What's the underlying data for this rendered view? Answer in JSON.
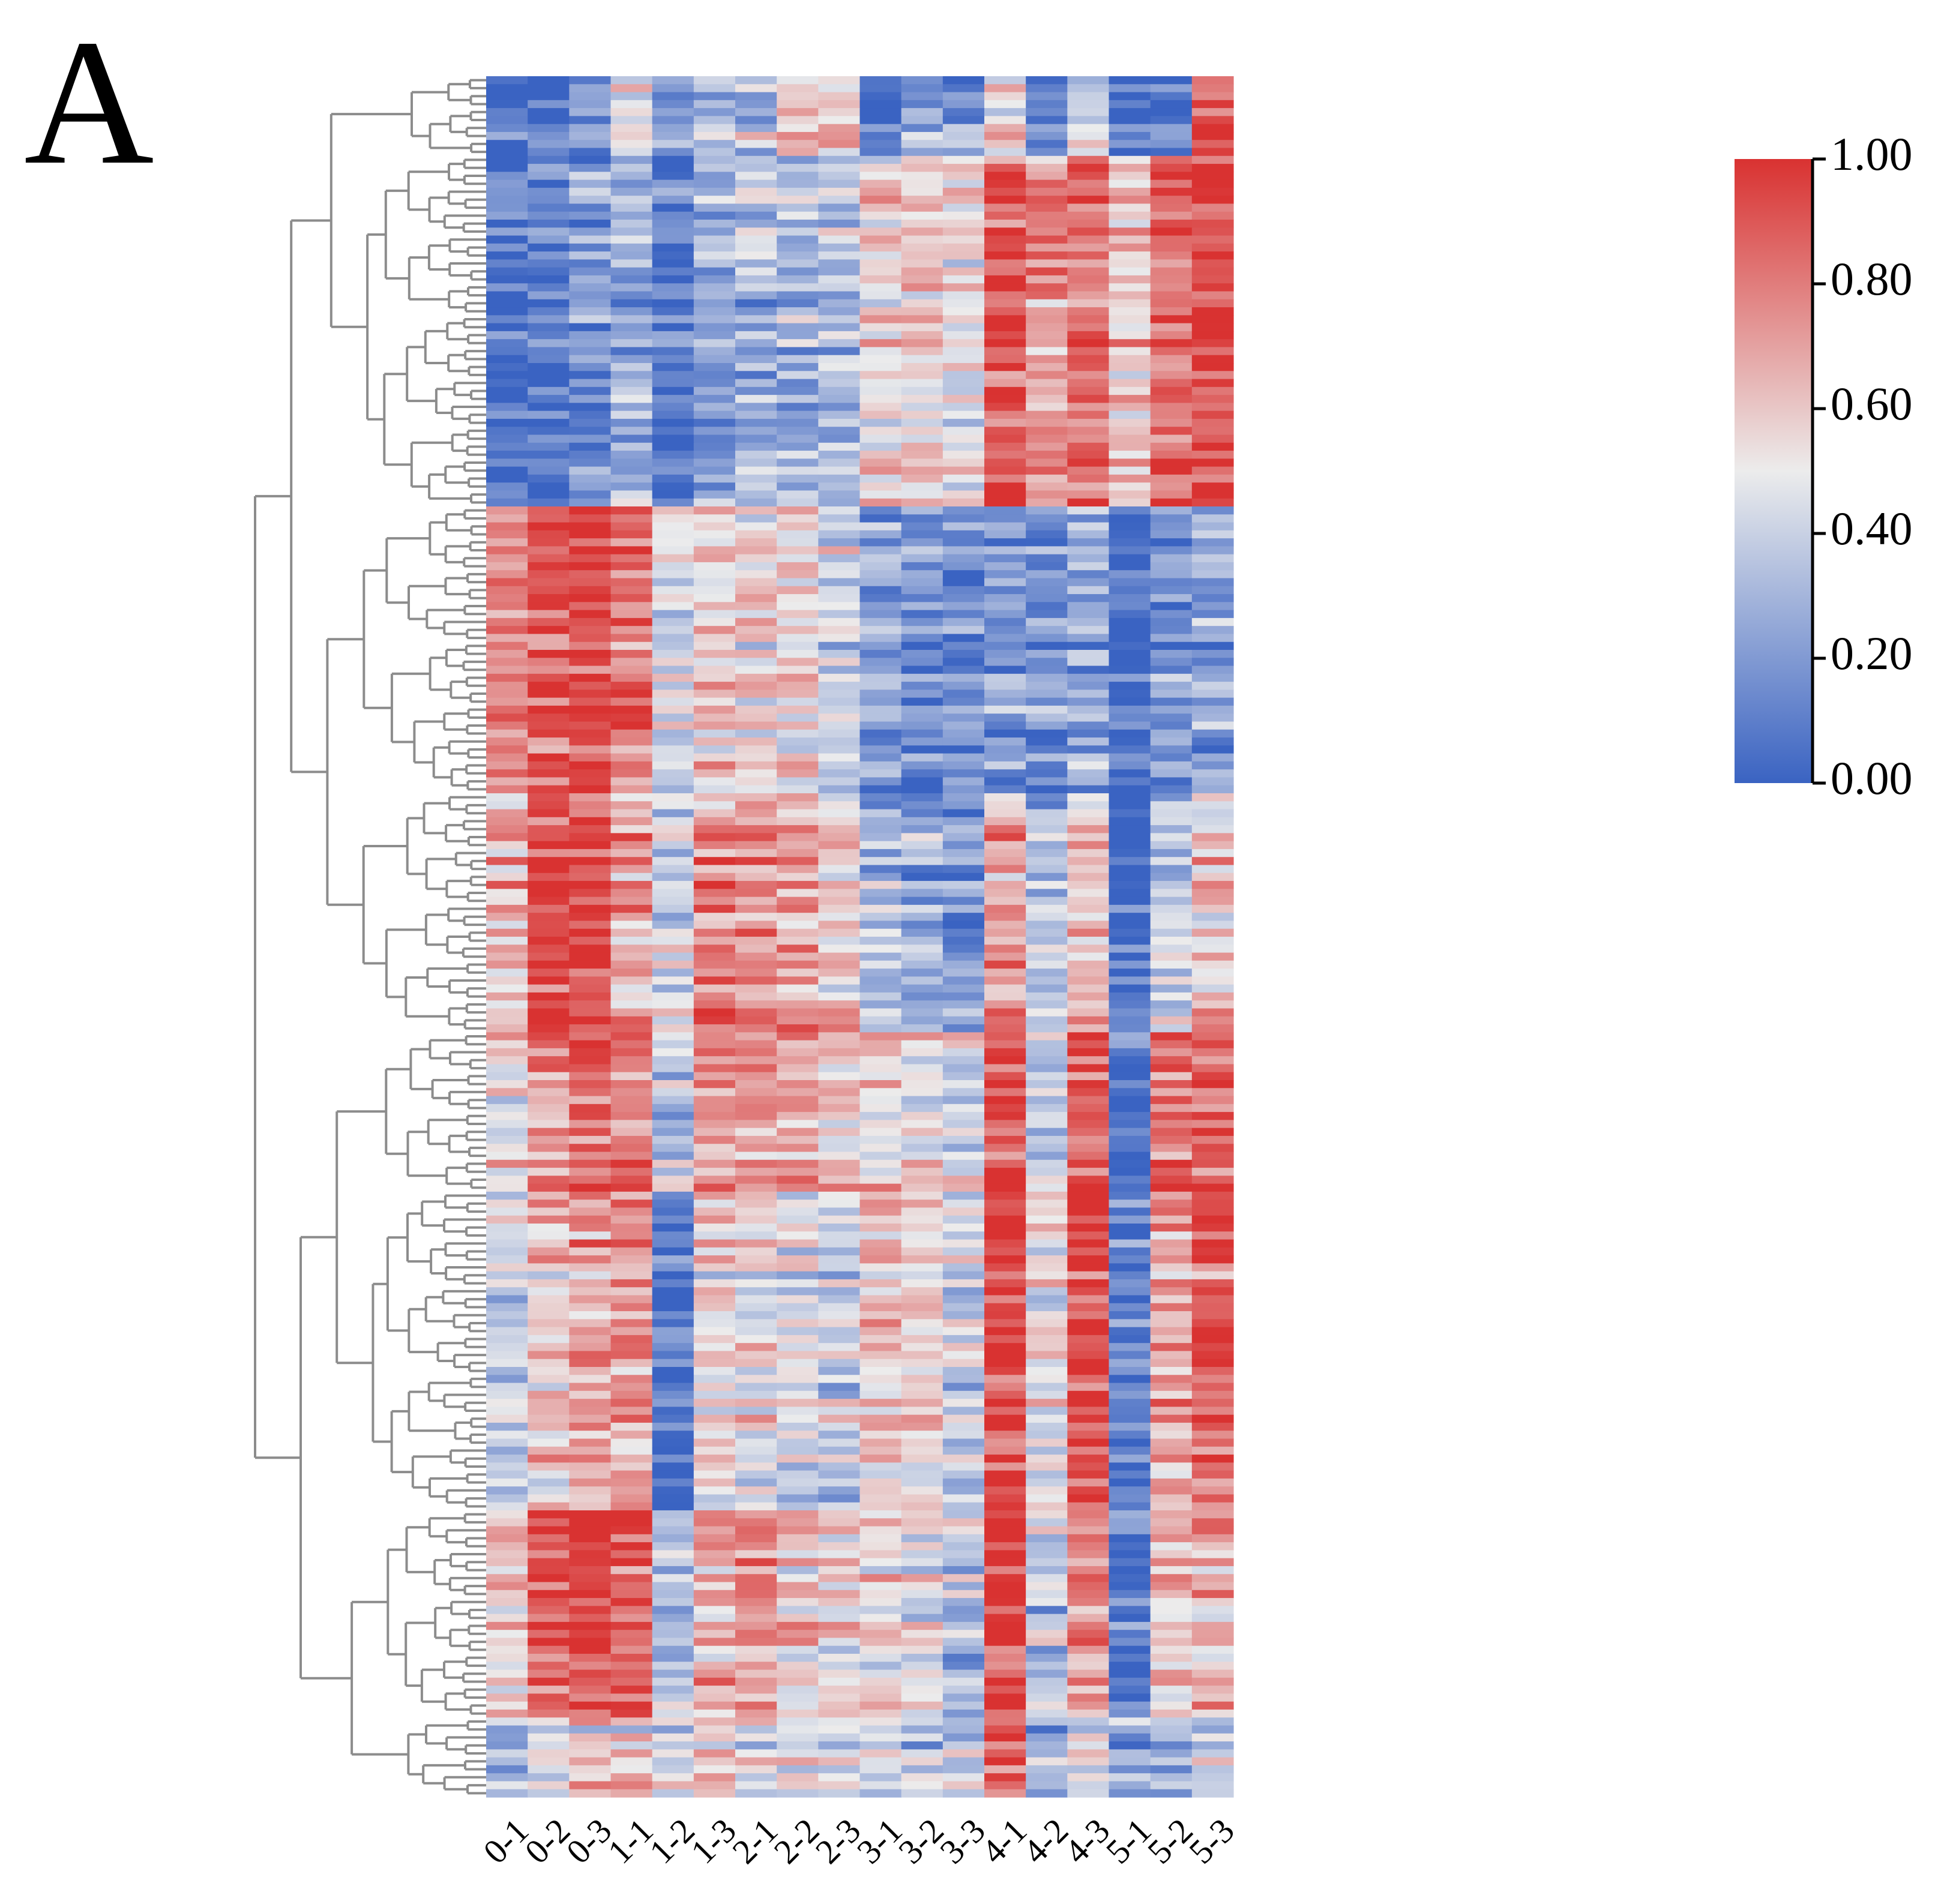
{
  "panel_label": "A",
  "colors": {
    "low": "#3a63c2",
    "mid": "#ececec",
    "high": "#d93231",
    "dendrogram": "#8c8c8c",
    "axis": "#000000"
  },
  "chart_data": {
    "type": "heatmap",
    "title": "",
    "xlabel": "",
    "ylabel": "",
    "x_categories": [
      "0-1",
      "0-2",
      "0-3",
      "1-1",
      "1-2",
      "1-3",
      "2-1",
      "2-2",
      "2-3",
      "3-1",
      "3-2",
      "3-3",
      "4-1",
      "4-2",
      "4-3",
      "5-1",
      "5-2",
      "5-3"
    ],
    "row_count": 216,
    "color_scale": {
      "min": 0.0,
      "max": 1.0,
      "tick_labels": [
        "0.00",
        "0.20",
        "0.40",
        "0.60",
        "0.80",
        "1.00"
      ],
      "colors": [
        "#3a63c2",
        "#ececec",
        "#d93231"
      ]
    },
    "row_dendrogram": true,
    "row_clusters": [
      {
        "name": "",
        "rows": 10,
        "means": [
          0.05,
          0.1,
          0.3,
          0.55,
          0.3,
          0.4,
          0.4,
          0.7,
          0.6,
          0.1,
          0.3,
          0.25,
          0.6,
          0.15,
          0.5,
          0.1,
          0.15,
          0.9
        ]
      },
      {
        "name": "",
        "rows": 44,
        "means": [
          0.08,
          0.1,
          0.2,
          0.3,
          0.08,
          0.25,
          0.3,
          0.32,
          0.35,
          0.55,
          0.58,
          0.5,
          0.9,
          0.75,
          0.85,
          0.6,
          0.85,
          0.95
        ]
      },
      {
        "name": "",
        "rows": 36,
        "means": [
          0.8,
          0.88,
          0.97,
          0.8,
          0.45,
          0.6,
          0.55,
          0.55,
          0.45,
          0.2,
          0.18,
          0.15,
          0.2,
          0.18,
          0.25,
          0.02,
          0.2,
          0.25
        ]
      },
      {
        "name": "",
        "rows": 30,
        "means": [
          0.65,
          0.9,
          0.95,
          0.7,
          0.45,
          0.75,
          0.75,
          0.72,
          0.62,
          0.3,
          0.25,
          0.2,
          0.7,
          0.35,
          0.6,
          0.02,
          0.4,
          0.6
        ]
      },
      {
        "name": "",
        "rows": 20,
        "means": [
          0.55,
          0.8,
          0.9,
          0.8,
          0.35,
          0.75,
          0.75,
          0.7,
          0.6,
          0.6,
          0.55,
          0.45,
          0.95,
          0.4,
          0.9,
          0.05,
          0.85,
          0.9
        ]
      },
      {
        "name": "",
        "rows": 40,
        "means": [
          0.4,
          0.6,
          0.7,
          0.7,
          0.05,
          0.55,
          0.5,
          0.45,
          0.4,
          0.6,
          0.55,
          0.4,
          0.95,
          0.5,
          0.95,
          0.1,
          0.7,
          0.85
        ]
      },
      {
        "name": "",
        "rows": 26,
        "means": [
          0.6,
          0.85,
          0.92,
          0.85,
          0.35,
          0.65,
          0.7,
          0.55,
          0.5,
          0.55,
          0.45,
          0.35,
          0.95,
          0.35,
          0.7,
          0.03,
          0.6,
          0.65
        ]
      },
      {
        "name": "",
        "rows": 10,
        "means": [
          0.3,
          0.45,
          0.55,
          0.55,
          0.4,
          0.55,
          0.5,
          0.45,
          0.5,
          0.4,
          0.35,
          0.35,
          0.9,
          0.3,
          0.45,
          0.25,
          0.3,
          0.4
        ]
      }
    ]
  }
}
